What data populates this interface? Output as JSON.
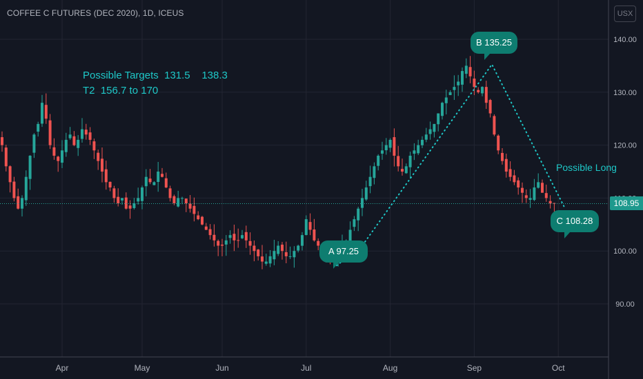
{
  "header": {
    "title": "COFFEE C FUTURES (DEC 2020), 1D, ICEUS",
    "currency": "USX"
  },
  "annotations": {
    "targets_line1": "Possible Targets  131.5    138.3",
    "targets_line2": "T2  156.7 to 170",
    "possible_long": "Possible Long",
    "label_a": "A  97.25",
    "label_b": "B 135.25",
    "label_c": "C 108.28"
  },
  "last_price": "108.95",
  "colors": {
    "background": "#131722",
    "up": "#26a69a",
    "down": "#ef5350",
    "grid": "#232632",
    "accent": "#1ec8c8",
    "label_bg": "#0e7d70"
  },
  "chart_data": {
    "type": "candlestick",
    "title": "COFFEE C FUTURES (DEC 2020), 1D, ICEUS",
    "ylim": [
      82,
      148
    ],
    "y_ticks": [
      "140.00",
      "130.00",
      "120.00",
      "110.00",
      "100.00",
      "90.00"
    ],
    "y_tick_values": [
      140,
      130,
      120,
      110,
      100,
      90
    ],
    "x_ticks": [
      {
        "label": "Apr",
        "index": 15
      },
      {
        "label": "May",
        "index": 35
      },
      {
        "label": "Jun",
        "index": 55
      },
      {
        "label": "Jul",
        "index": 76
      },
      {
        "label": "Aug",
        "index": 97
      },
      {
        "label": "Sep",
        "index": 118
      },
      {
        "label": "Oct",
        "index": 139
      }
    ],
    "close_series": [
      120,
      116,
      113,
      110,
      108,
      110,
      114,
      118,
      122,
      124,
      128,
      125,
      120,
      118,
      117,
      119,
      121,
      122,
      120,
      121,
      123,
      122,
      121,
      119,
      117,
      115,
      113,
      112,
      110,
      109,
      110,
      108,
      108,
      109,
      110,
      112,
      114,
      113,
      113,
      115,
      114,
      112,
      110,
      109,
      110,
      110,
      109,
      108,
      107,
      106,
      105,
      104,
      103,
      102,
      101,
      101,
      102,
      103,
      102,
      102,
      103,
      102,
      101,
      100,
      99,
      98,
      98,
      99,
      100,
      101,
      100,
      99,
      99,
      100,
      101,
      103,
      106,
      104,
      102,
      101,
      100,
      99,
      98,
      99,
      100,
      101,
      102,
      104,
      106,
      108,
      110,
      112,
      114,
      116,
      118,
      119,
      120,
      121,
      118,
      116,
      115,
      116,
      118,
      119,
      120,
      121,
      122,
      123,
      124,
      126,
      128,
      129,
      130,
      131,
      132,
      134,
      135,
      133,
      131,
      130,
      131,
      128,
      126,
      122,
      119,
      117,
      115,
      114,
      113,
      112,
      111,
      110,
      110,
      112,
      113,
      111,
      110,
      109,
      109
    ],
    "wave_points": [
      {
        "label": "A",
        "value": 97.25
      },
      {
        "label": "B",
        "value": 135.25
      },
      {
        "label": "C",
        "value": 108.28
      }
    ],
    "last_price": 108.95,
    "grid": true
  }
}
